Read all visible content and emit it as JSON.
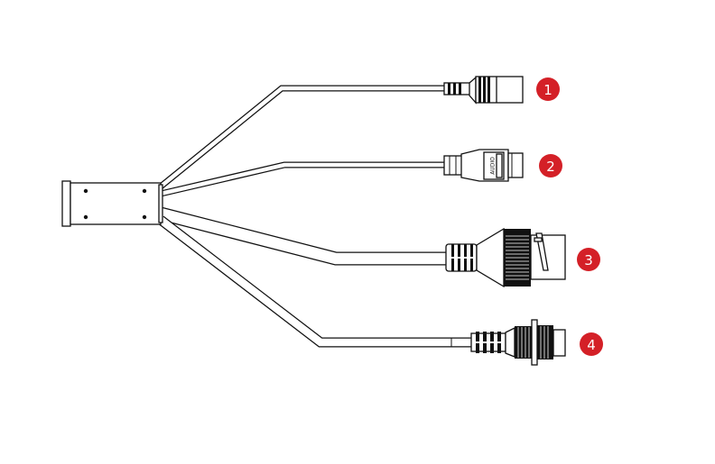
{
  "badge_color": "#d42027",
  "connectors": [
    {
      "number": "1",
      "kind": "dc-power-jack"
    },
    {
      "number": "2",
      "kind": "audio-connector",
      "label": "AUDIO"
    },
    {
      "number": "3",
      "kind": "rj45-waterproof"
    },
    {
      "number": "4",
      "kind": "aviation-connector"
    }
  ]
}
